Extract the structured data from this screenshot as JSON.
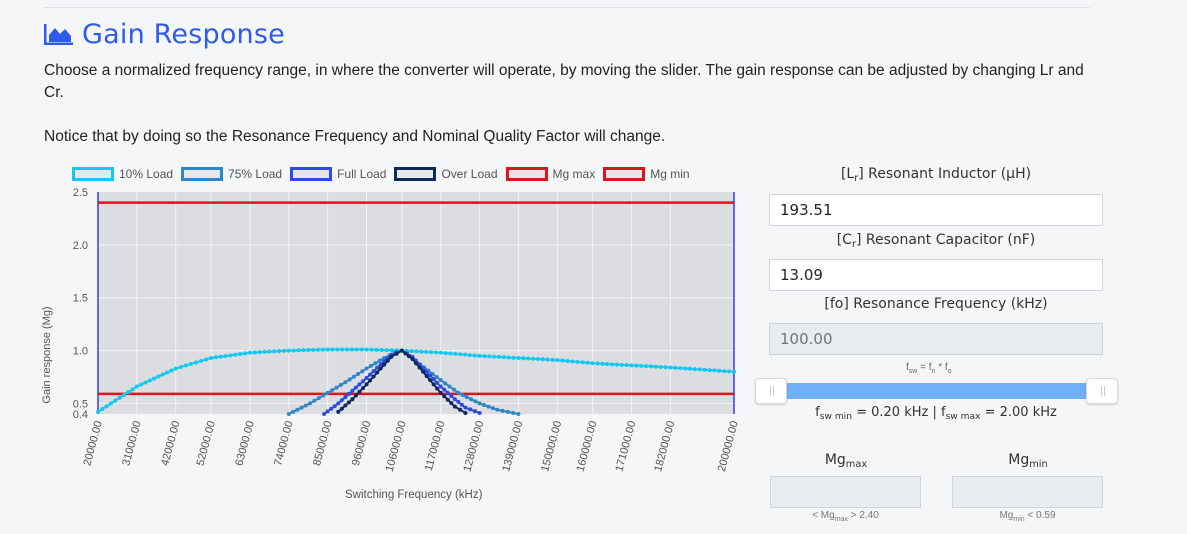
{
  "header": {
    "title": "Gain Response",
    "description": "Choose a normalized frequency range, in where the converter will operate, by moving the slider. The gain response can be adjusted by changing Lr and Cr.",
    "notice": "Notice that by doing so the Resonance Frequency and Nominal Quality Factor will change."
  },
  "legend": [
    {
      "label": "10% Load",
      "color": "#14c8f0"
    },
    {
      "label": "75% Load",
      "color": "#2f86c8"
    },
    {
      "label": "Full Load",
      "color": "#2e4be0"
    },
    {
      "label": "Over Load",
      "color": "#0d2a5c"
    },
    {
      "label": "Mg max",
      "color": "#e0141e"
    },
    {
      "label": "Mg min",
      "color": "#e0141e"
    }
  ],
  "chart_data": {
    "type": "line",
    "xlabel": "Switching Frequency (kHz)",
    "ylabel": "Gain response (Mg)",
    "ylim": [
      0.4,
      2.5
    ],
    "yticks": [
      "2.5",
      "2.0",
      "1.5",
      "1.0",
      "0.5",
      "0.4"
    ],
    "xlim": [
      20000,
      200000
    ],
    "xticks": [
      "20000.00",
      "31000.00",
      "42000.00",
      "52000.00",
      "63000.00",
      "74000.00",
      "85000.00",
      "96000.00",
      "106000.00",
      "117000.00",
      "128000.00",
      "139000.00",
      "150000.00",
      "160000.00",
      "171000.00",
      "182000.00",
      "200000.00"
    ],
    "grid": true,
    "series": [
      {
        "name": "10% Load",
        "color": "#14c8f0",
        "x": [
          20000,
          31000,
          42000,
          52000,
          63000,
          74000,
          85000,
          96000,
          106000,
          117000,
          128000,
          139000,
          150000,
          160000,
          171000,
          182000,
          200000
        ],
        "y": [
          0.42,
          0.66,
          0.83,
          0.93,
          0.98,
          1.0,
          1.01,
          1.01,
          1.0,
          0.98,
          0.95,
          0.93,
          0.91,
          0.88,
          0.86,
          0.84,
          0.8
        ]
      },
      {
        "name": "75% Load",
        "color": "#2f86c8",
        "x": [
          74000,
          80000,
          85000,
          90000,
          96000,
          101000,
          104000,
          106000,
          110000,
          117000,
          122000,
          128000,
          133000,
          139000
        ],
        "y": [
          0.4,
          0.5,
          0.6,
          0.7,
          0.83,
          0.93,
          0.98,
          1.0,
          0.9,
          0.72,
          0.6,
          0.5,
          0.44,
          0.4
        ]
      },
      {
        "name": "Full Load",
        "color": "#2e4be0",
        "x": [
          84000,
          88000,
          92000,
          96000,
          100000,
          103000,
          106000,
          109000,
          113000,
          117000,
          121000,
          124000,
          128000
        ],
        "y": [
          0.4,
          0.5,
          0.62,
          0.74,
          0.87,
          0.96,
          1.0,
          0.94,
          0.8,
          0.66,
          0.54,
          0.46,
          0.41
        ]
      },
      {
        "name": "Over Load",
        "color": "#0d2a5c",
        "x": [
          88000,
          92000,
          96000,
          100000,
          103000,
          106000,
          109000,
          113000,
          117000,
          121000,
          124000
        ],
        "y": [
          0.42,
          0.54,
          0.68,
          0.83,
          0.94,
          1.0,
          0.92,
          0.76,
          0.6,
          0.47,
          0.41
        ]
      }
    ],
    "hlines": [
      {
        "name": "Mg max",
        "value": 2.4,
        "color": "#e0141e"
      },
      {
        "name": "Mg min",
        "value": 0.59,
        "color": "#e0141e"
      }
    ]
  },
  "form": {
    "lr_label": "[Lr] Resonant Inductor (μH)",
    "lr_value": "193.51",
    "cr_label": "[Cr] Resonant Capacitor (nF)",
    "cr_value": "13.09",
    "fo_label": "[fo] Resonance Frequency (kHz)",
    "fo_value": "100.00",
    "formula": "fsw = fn * fo",
    "range_text": "fsw min = 0.20 kHz | fsw max = 2.00 kHz",
    "slider_min_fraction": 0.1,
    "slider_max_fraction": 1.0,
    "mg_max_label": "Mgmax",
    "mg_min_label": "Mgmin",
    "mg_max_note": "< Mgmax > 2.40",
    "mg_min_note": "Mgmin < 0.59"
  }
}
